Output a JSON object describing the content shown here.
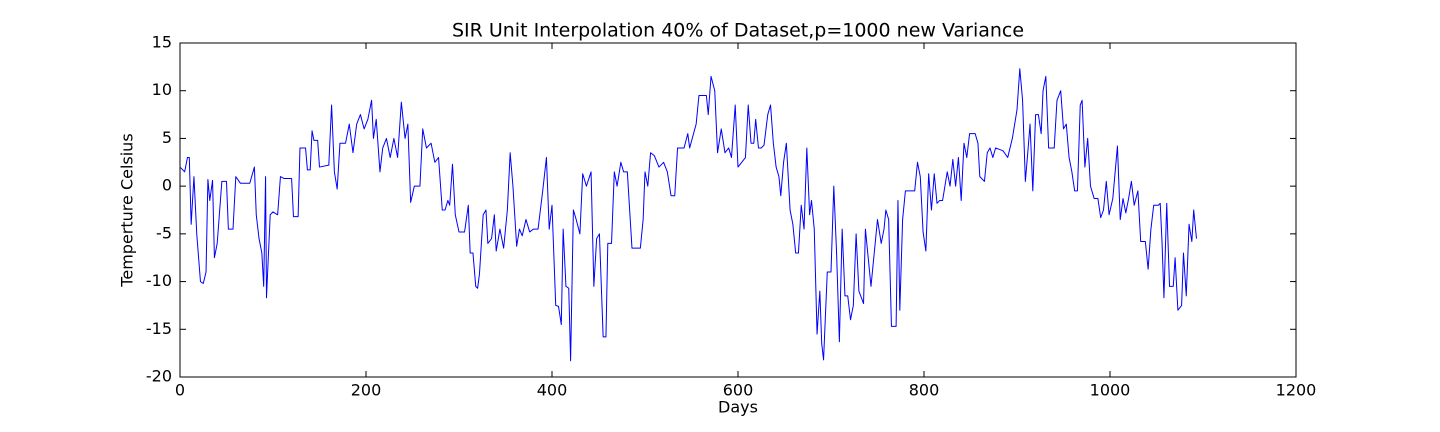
{
  "chart_data": {
    "type": "line",
    "title": "SIR Unit Interpolation 40% of Dataset,p=1000 new Variance",
    "x_label": "Days",
    "y_label": "Temperture Celsius",
    "xlim": [
      0,
      1200
    ],
    "xticks": [
      0,
      200,
      400,
      600,
      800,
      1000,
      1200
    ],
    "ylim": [
      -20,
      15
    ],
    "yticks": [
      -20,
      -15,
      -10,
      -5,
      0,
      5,
      10,
      15
    ],
    "grid": false,
    "series": [
      {
        "color": "#0000ff",
        "x": [
          0,
          5,
          8,
          10,
          12,
          15,
          18,
          22,
          25,
          28,
          30,
          32,
          35,
          37,
          40,
          45,
          50,
          52,
          57,
          60,
          65,
          75,
          80,
          82,
          85,
          88,
          90,
          92,
          93,
          97,
          100,
          105,
          108,
          112,
          120,
          122,
          127,
          129,
          135,
          137,
          140,
          142,
          144,
          148,
          150,
          160,
          163,
          166,
          169,
          172,
          178,
          182,
          186,
          190,
          194,
          198,
          202,
          206,
          208,
          211,
          215,
          218,
          222,
          226,
          230,
          234,
          238,
          242,
          245,
          248,
          252,
          258,
          261,
          265,
          270,
          274,
          278,
          282,
          285,
          288,
          290,
          293,
          296,
          300,
          306,
          310,
          312,
          315,
          318,
          320,
          322,
          326,
          329,
          331,
          335,
          338,
          340,
          344,
          348,
          352,
          355,
          358,
          362,
          365,
          368,
          372,
          376,
          380,
          385,
          390,
          394,
          397,
          400,
          404,
          407,
          410,
          412,
          415,
          418,
          420,
          423,
          426,
          430,
          433,
          437,
          442,
          445,
          448,
          451,
          455,
          458,
          460,
          464,
          467,
          470,
          474,
          477,
          481,
          486,
          495,
          498,
          500,
          503,
          506,
          510,
          515,
          520,
          524,
          528,
          532,
          535,
          542,
          546,
          548,
          555,
          558,
          566,
          568,
          571,
          575,
          578,
          582,
          586,
          590,
          593,
          597,
          600,
          604,
          608,
          611,
          614,
          617,
          619,
          622,
          625,
          628,
          632,
          635,
          638,
          641,
          644,
          646,
          649,
          652,
          656,
          659,
          662,
          665,
          668,
          671,
          674,
          677,
          679,
          682,
          685,
          688,
          690,
          692,
          696,
          700,
          703,
          706,
          709,
          712,
          715,
          718,
          721,
          724,
          727,
          730,
          735,
          737,
          740,
          743,
          746,
          750,
          754,
          757,
          759,
          762,
          765,
          770,
          772,
          774,
          777,
          780,
          790,
          793,
          796,
          799,
          802,
          805,
          808,
          811,
          814,
          817,
          820,
          825,
          828,
          831,
          834,
          837,
          840,
          843,
          846,
          849,
          855,
          858,
          860,
          865,
          868,
          871,
          874,
          877,
          885,
          890,
          895,
          900,
          903,
          906,
          909,
          912,
          914,
          917,
          920,
          923,
          926,
          928,
          931,
          934,
          940,
          943,
          947,
          950,
          953,
          956,
          959,
          962,
          965,
          968,
          970,
          973,
          976,
          979,
          983,
          987,
          990,
          993,
          996,
          999,
          1003,
          1006,
          1008,
          1011,
          1014,
          1017,
          1020,
          1023,
          1026,
          1030,
          1033,
          1038,
          1041,
          1044,
          1047,
          1052,
          1054,
          1056,
          1058,
          1061,
          1064,
          1068,
          1070,
          1073,
          1077,
          1079,
          1082,
          1085,
          1088,
          1090,
          1093
        ],
        "values": [
          2,
          1.5,
          3,
          3,
          -4,
          1,
          -5,
          -10,
          -10.2,
          -9,
          0.7,
          -1.5,
          0.6,
          -7.5,
          -6,
          0.5,
          0.5,
          -4.5,
          -4.5,
          1,
          0.3,
          0.3,
          2,
          -3,
          -5.5,
          -7,
          -10.5,
          1,
          -11.7,
          -3,
          -2.7,
          -3,
          1,
          0.8,
          0.8,
          -3.2,
          -3.2,
          4,
          4,
          1.7,
          1.7,
          5.8,
          4.8,
          4.8,
          2,
          2.2,
          8.5,
          1.5,
          -0.3,
          4.5,
          4.5,
          6.5,
          3.5,
          6.5,
          7.5,
          6,
          7,
          9,
          5,
          7,
          1.5,
          4,
          5,
          3,
          5,
          3,
          8.8,
          5,
          6.5,
          -1.7,
          0,
          0,
          6,
          4,
          4.5,
          2.5,
          3,
          -2.5,
          -2.5,
          -1.5,
          -2,
          2.3,
          -3,
          -4.8,
          -4.8,
          -2,
          -7,
          -7,
          -10.5,
          -10.7,
          -9.2,
          -3,
          -2.5,
          -6,
          -5.5,
          -3,
          -6.8,
          -4.5,
          -6.5,
          -2.5,
          3.5,
          0,
          -6.3,
          -4.5,
          -5.2,
          -3.5,
          -4.8,
          -4.5,
          -4.5,
          -0.5,
          3,
          -4.5,
          -2,
          -12.5,
          -12.6,
          -14.5,
          -4.5,
          -10.5,
          -10.7,
          -18.3,
          -2.5,
          -3.5,
          -5,
          1.3,
          0,
          1.5,
          -10.5,
          -5.5,
          -5,
          -15.8,
          -15.8,
          -6,
          -6,
          1.5,
          0,
          2.5,
          1.5,
          1.5,
          -6.5,
          -6.5,
          -3.5,
          1.5,
          0,
          3.5,
          3.2,
          2,
          2.5,
          1.5,
          -1,
          -1,
          4,
          4,
          5.5,
          4,
          6.5,
          9.5,
          9.5,
          7.5,
          11.5,
          10,
          3.5,
          6,
          3.5,
          4,
          3,
          8.5,
          2,
          2.5,
          3,
          8.5,
          4.5,
          4.5,
          7,
          4,
          4,
          4.3,
          7.5,
          8.5,
          4.5,
          2,
          1,
          -1,
          2.5,
          4.5,
          -2.5,
          -4,
          -7,
          -7,
          -2,
          -4.5,
          4,
          -3,
          -1.5,
          -4.5,
          -15.5,
          -11,
          -16.5,
          -18.2,
          -9,
          -9,
          0,
          -7,
          -16.3,
          -4.5,
          -11.5,
          -11.5,
          -14,
          -12.5,
          -5,
          -11,
          -12.3,
          -4.5,
          -7.5,
          -10.5,
          -7.5,
          -3.5,
          -6,
          -4.5,
          -2.5,
          -3.5,
          -14.7,
          -14.7,
          -1.5,
          -13,
          -3.5,
          -0.5,
          -0.5,
          2.5,
          1,
          -4.8,
          -6.8,
          1.3,
          -2.5,
          1.3,
          -1.8,
          -1.5,
          -1.5,
          1.5,
          0,
          2.8,
          0,
          3,
          -1.5,
          4.5,
          3,
          5.5,
          5.5,
          4.5,
          1,
          0.5,
          3.5,
          4,
          3,
          4,
          3.7,
          3,
          5,
          8,
          12.3,
          9,
          0.5,
          4,
          6.5,
          -0.5,
          7.5,
          7.5,
          5.5,
          10,
          11.5,
          4,
          4,
          9,
          10,
          6,
          6.5,
          3,
          1.5,
          -0.5,
          -0.5,
          8.5,
          9,
          2,
          5,
          0,
          -1.3,
          -1.3,
          -3.3,
          -2.5,
          0.5,
          -3,
          -1.3,
          2,
          4.2,
          -3.5,
          -1.3,
          -2.8,
          -1.3,
          0.5,
          -2,
          -0.5,
          -5.8,
          -5.8,
          -8.7,
          -4.5,
          -2,
          -2,
          -1.8,
          -6,
          -11.7,
          -1.8,
          -10.5,
          -10.5,
          -7.5,
          -13,
          -12.5,
          -7,
          -11.5,
          -4,
          -5.8,
          -2.5,
          -5.5
        ]
      }
    ]
  }
}
